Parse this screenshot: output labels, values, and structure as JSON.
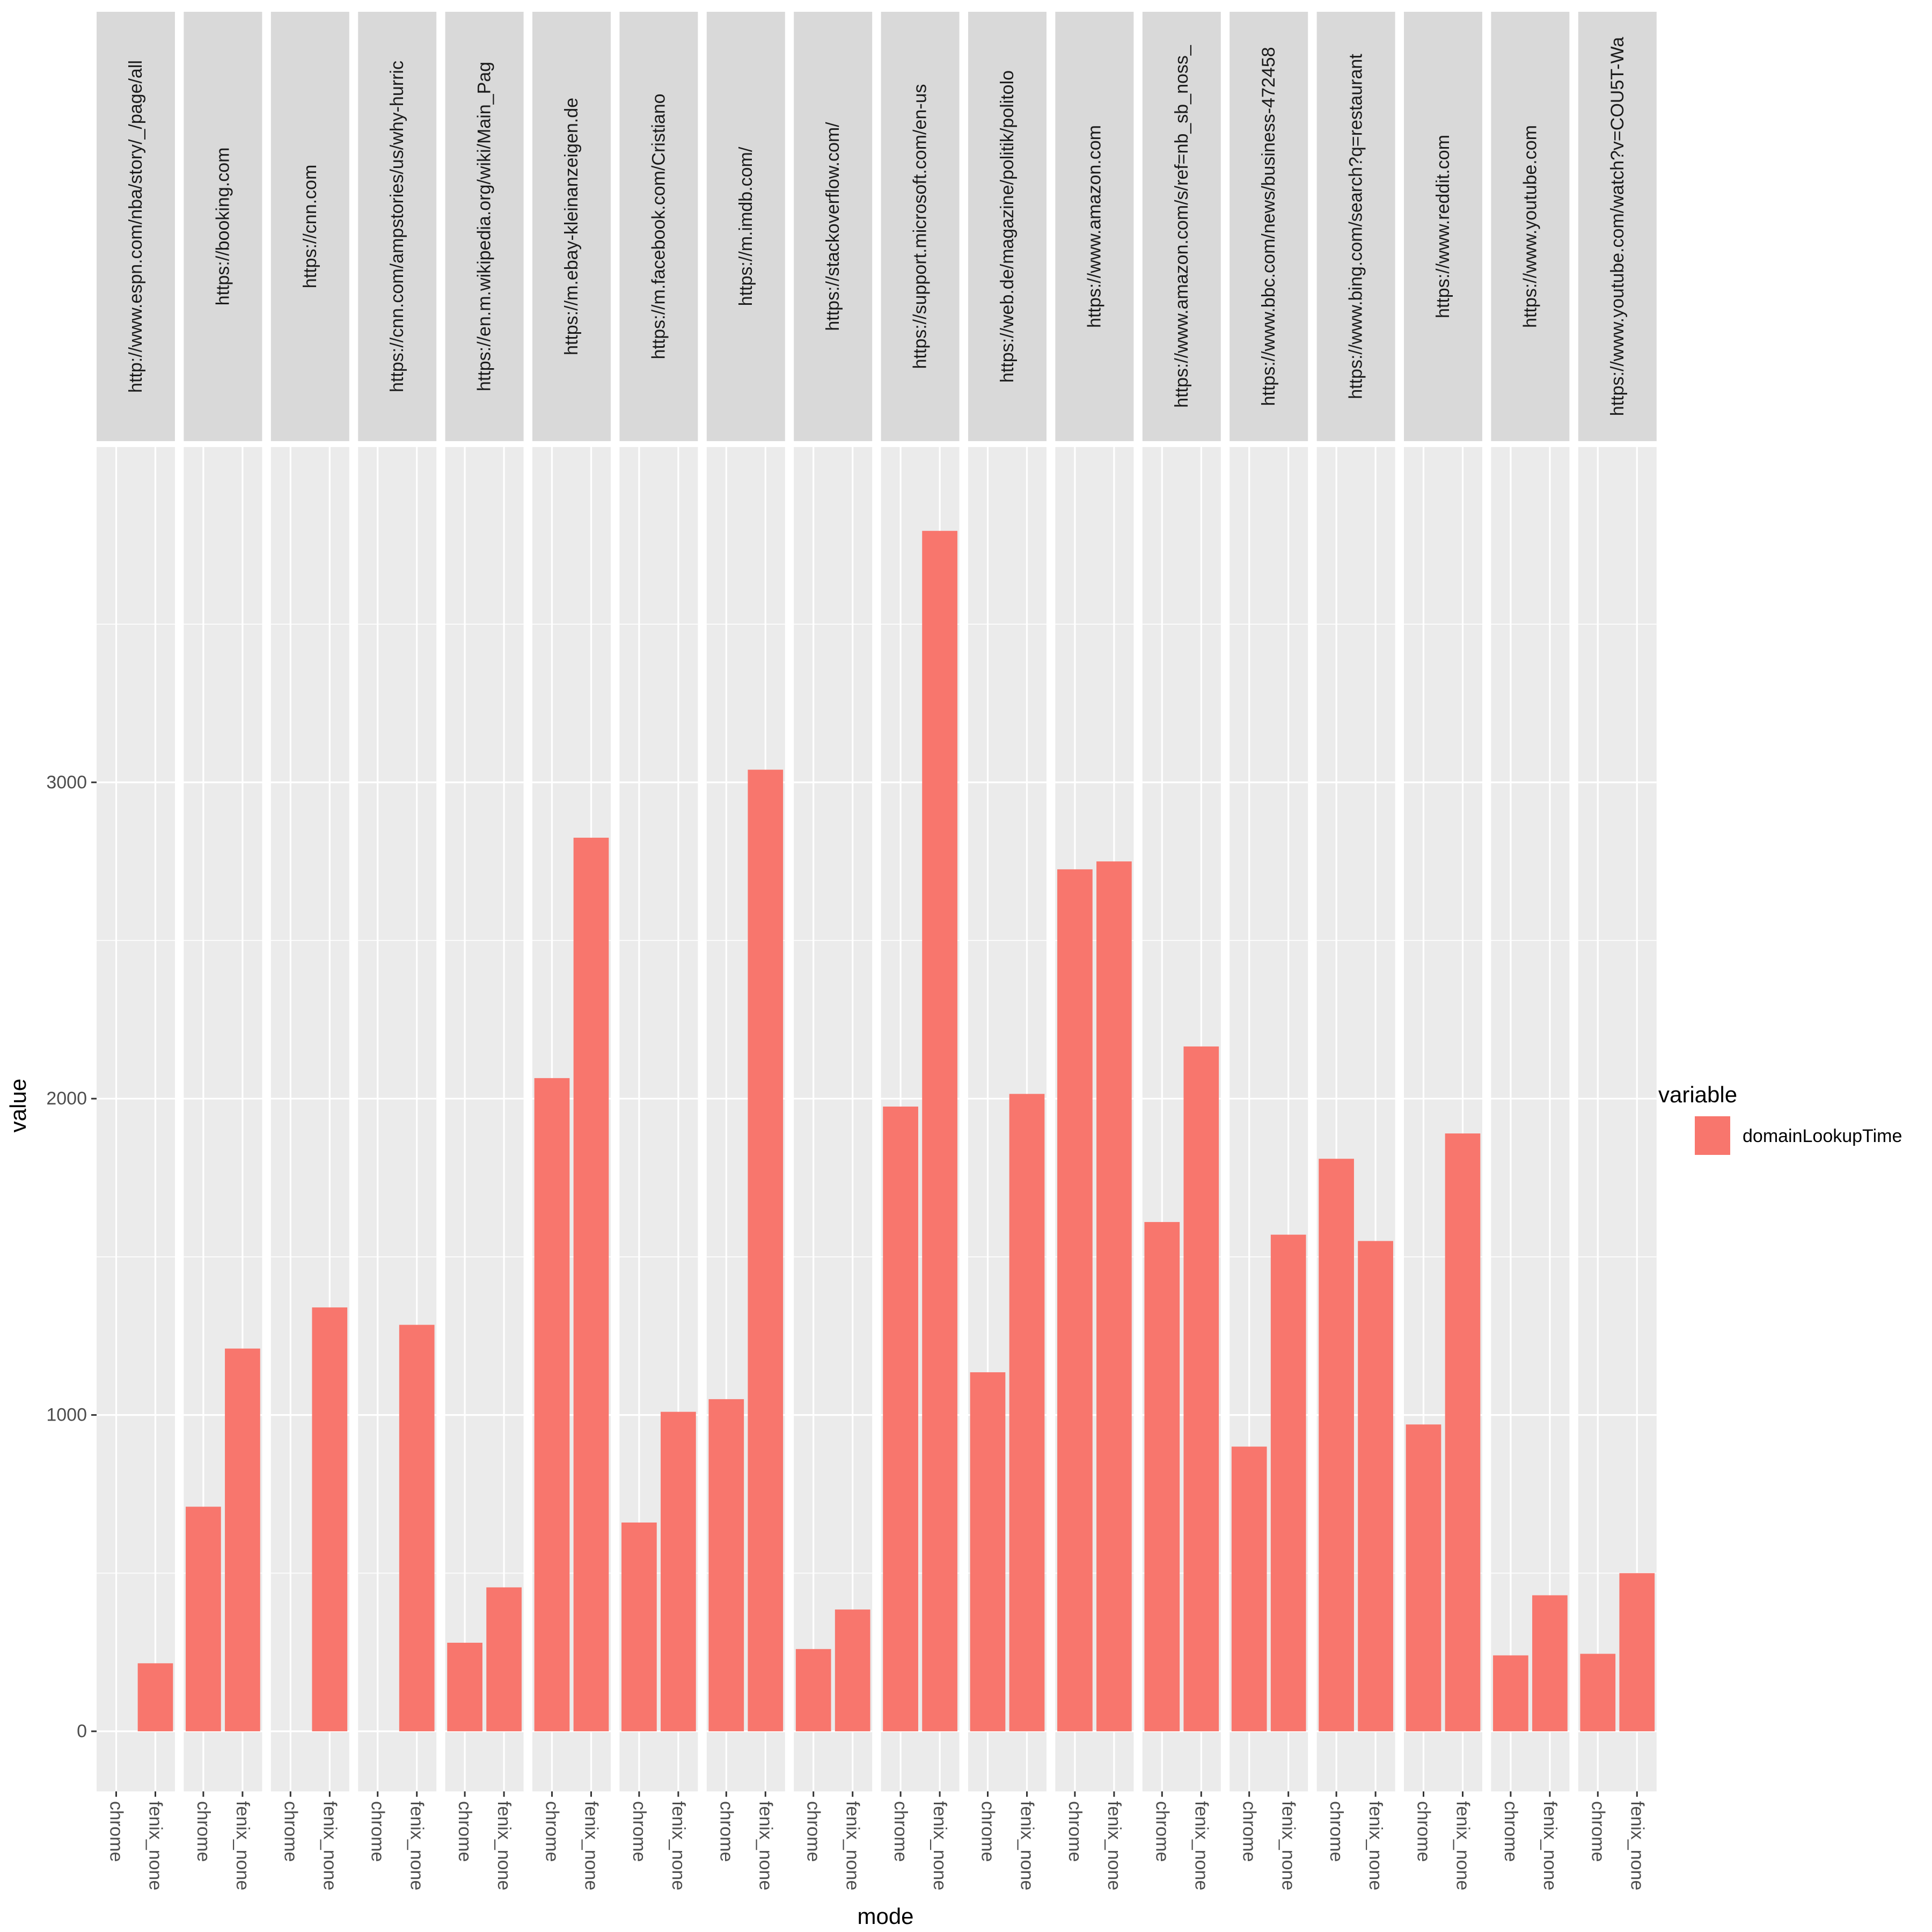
{
  "chart_data": {
    "type": "bar",
    "xlabel": "mode",
    "ylabel": "value",
    "ylim": [
      -190,
      4060
    ],
    "y_ticks": [
      0,
      1000,
      2000,
      3000
    ],
    "categories": [
      "chrome",
      "fenix_none"
    ],
    "legend": {
      "title": "variable",
      "placement": "right"
    },
    "series": [
      {
        "name": "domainLookupTime",
        "color": "#F8766D"
      }
    ],
    "facets": [
      {
        "label": "http://www.espn.com/nba/story/_/page/all",
        "values": [
          null,
          215
        ]
      },
      {
        "label": "https://booking.com",
        "values": [
          710,
          1210
        ]
      },
      {
        "label": "https://cnn.com",
        "values": [
          null,
          1340
        ]
      },
      {
        "label": "https://cnn.com/ampstories/us/why-hurric",
        "values": [
          null,
          1285
        ]
      },
      {
        "label": "https://en.m.wikipedia.org/wiki/Main_Pag",
        "values": [
          280,
          455
        ]
      },
      {
        "label": "https://m.ebay-kleinanzeigen.de",
        "values": [
          2065,
          2825
        ]
      },
      {
        "label": "https://m.facebook.com/Cristiano",
        "values": [
          660,
          1010
        ]
      },
      {
        "label": "https://m.imdb.com/",
        "values": [
          1050,
          3040
        ]
      },
      {
        "label": "https://stackoverflow.com/",
        "values": [
          260,
          385
        ]
      },
      {
        "label": "https://support.microsoft.com/en-us",
        "values": [
          1975,
          3795
        ]
      },
      {
        "label": "https://web.de/magazine/politik/politolo",
        "values": [
          1135,
          2015
        ]
      },
      {
        "label": "https://www.amazon.com",
        "values": [
          2725,
          2750
        ]
      },
      {
        "label": "https://www.amazon.com/s/ref=nb_sb_noss_",
        "values": [
          1610,
          2165
        ]
      },
      {
        "label": "https://www.bbc.com/news/business-472458",
        "values": [
          900,
          1570
        ]
      },
      {
        "label": "https://www.bing.com/search?q=restaurant",
        "values": [
          1810,
          1550
        ]
      },
      {
        "label": "https://www.reddit.com",
        "values": [
          970,
          1890
        ]
      },
      {
        "label": "https://www.youtube.com",
        "values": [
          240,
          430
        ]
      },
      {
        "label": "https://www.youtube.com/watch?v=COU5T-Wa",
        "values": [
          245,
          500
        ]
      }
    ]
  }
}
